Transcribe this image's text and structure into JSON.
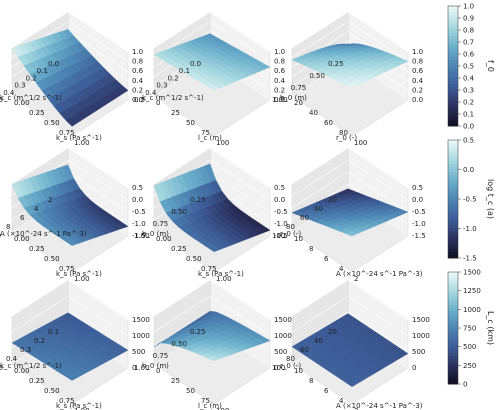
{
  "colors": {
    "cmap": [
      "#0b0d1a",
      "#2a2f5c",
      "#3c5b96",
      "#4b83b3",
      "#6aaecb",
      "#a5d8e0",
      "#e8f7f6"
    ],
    "pane": "#ececec",
    "grid": "#ffffff"
  },
  "chart_data": [
    {
      "type": "surface",
      "row": 0,
      "col": 0,
      "zkey": "f0",
      "zlim": [
        0,
        1
      ],
      "zticks": [
        "0.0",
        "0.2",
        "0.4",
        "0.6",
        "0.8",
        "1.0"
      ],
      "xaxis": {
        "label": "k_s (Pa s^-1)",
        "ticks": [
          "0.00",
          "0.25",
          "0.50",
          "0.75",
          "1.00"
        ]
      },
      "yaxis": {
        "label": "k_c (m^1/2 s^-1)",
        "ticks": [
          "0.0",
          "0.1",
          "0.2",
          "0.3",
          "0.4",
          "0.5"
        ]
      }
    },
    {
      "type": "surface",
      "row": 0,
      "col": 1,
      "zkey": "f0",
      "zlim": [
        0,
        1
      ],
      "zticks": [
        "0.0",
        "0.2",
        "0.4",
        "0.6",
        "0.8",
        "1.0"
      ],
      "xaxis": {
        "label": "l_c (m)",
        "ticks": [
          "0",
          "25",
          "50",
          "75",
          "100"
        ]
      },
      "yaxis": {
        "label": "k_c (m^1/2 s^-1)",
        "ticks": [
          "0.0",
          "0.1",
          "0.2",
          "0.3",
          "0.4",
          "0.5"
        ]
      }
    },
    {
      "type": "surface",
      "row": 0,
      "col": 2,
      "zkey": "f0",
      "zlim": [
        0,
        1
      ],
      "zticks": [
        "0.0",
        "0.2",
        "0.4",
        "0.6",
        "0.8",
        "1.0"
      ],
      "xaxis": {
        "label": "r_0 (-)",
        "ticks": [
          "20",
          "40",
          "60",
          "80",
          "100"
        ]
      },
      "yaxis": {
        "label": "h_0 (m)",
        "ticks": [
          "0.25",
          "0.50",
          "0.75",
          "1.00"
        ]
      }
    },
    {
      "type": "surface",
      "row": 1,
      "col": 0,
      "zkey": "logt",
      "zlim": [
        -1.5,
        0.5
      ],
      "zticks": [
        "-1.5",
        "-1.0",
        "-0.5",
        "0.0",
        "0.5"
      ],
      "xaxis": {
        "label": "k_s (Pa s^-1)",
        "ticks": [
          "0.00",
          "0.25",
          "0.50",
          "0.75",
          "1.00"
        ]
      },
      "yaxis": {
        "label": "A (×10^-24 s^-1 Pa^-3)",
        "ticks": [
          "2",
          "4",
          "6",
          "8",
          "10"
        ]
      }
    },
    {
      "type": "surface",
      "row": 1,
      "col": 1,
      "zkey": "logt",
      "zlim": [
        -1.5,
        0.5
      ],
      "zticks": [
        "-1.5",
        "-1.0",
        "-0.5",
        "0.0",
        "0.5"
      ],
      "xaxis": {
        "label": "k_s (Pa s^-1)",
        "ticks": [
          "0.00",
          "0.25",
          "0.50",
          "0.75",
          "1.00"
        ]
      },
      "yaxis": {
        "label": "h_0 (m)",
        "ticks": [
          "0.25",
          "0.50",
          "0.75",
          "1.00"
        ]
      }
    },
    {
      "type": "surface",
      "row": 1,
      "col": 2,
      "zkey": "logt",
      "zlim": [
        -1.5,
        0.5
      ],
      "zticks": [
        "-1.5",
        "-1.0",
        "-0.5",
        "0.0",
        "0.5"
      ],
      "xaxis": {
        "label": "A (×10^-24 s^-1 Pa^-3)",
        "ticks": [
          "10",
          "8",
          "6",
          "4",
          "2"
        ]
      },
      "yaxis": {
        "label": "r_0 (-)",
        "ticks": [
          "20",
          "40",
          "60",
          "80",
          "100"
        ]
      }
    },
    {
      "type": "surface",
      "row": 2,
      "col": 0,
      "zkey": "Lc",
      "zlim": [
        0,
        1500
      ],
      "zticks": [
        "0",
        "500",
        "1000",
        "1500"
      ],
      "xaxis": {
        "label": "k_s (Pa s^-1)",
        "ticks": [
          "0.00",
          "0.25",
          "0.50",
          "0.75",
          "1.00"
        ]
      },
      "yaxis": {
        "label": "k_c (m^1/2 s^-1)",
        "ticks": [
          "0.1",
          "0.2",
          "0.3",
          "0.4",
          "0.5"
        ]
      }
    },
    {
      "type": "surface",
      "row": 2,
      "col": 1,
      "zkey": "Lc",
      "zlim": [
        0,
        1500
      ],
      "zticks": [
        "0",
        "500",
        "1000",
        "1500"
      ],
      "xaxis": {
        "label": "l_c (m)",
        "ticks": [
          "0",
          "25",
          "50",
          "75",
          "100"
        ]
      },
      "yaxis": {
        "label": "h_0 (m)",
        "ticks": [
          "0.25",
          "0.50",
          "0.75",
          "1.00"
        ]
      }
    },
    {
      "type": "surface",
      "row": 2,
      "col": 2,
      "zkey": "Lc",
      "zlim": [
        0,
        1500
      ],
      "zticks": [
        "0",
        "500",
        "1000",
        "1500"
      ],
      "xaxis": {
        "label": "A (×10^-24 s^-1 Pa^-3)",
        "ticks": [
          "10",
          "8",
          "6",
          "4",
          "2"
        ]
      },
      "yaxis": {
        "label": "r_0 (-)",
        "ticks": [
          "20",
          "40",
          "60",
          "80",
          "100"
        ]
      }
    }
  ],
  "colorbars": [
    {
      "row": 0,
      "label": "f_0",
      "lim": [
        0,
        1
      ],
      "ticks": [
        "0.0",
        "0.1",
        "0.2",
        "0.3",
        "0.4",
        "0.5",
        "0.6",
        "0.7",
        "0.8",
        "0.9",
        "1.0"
      ]
    },
    {
      "row": 1,
      "label": "log t_c (a)",
      "lim": [
        -1.5,
        0.5
      ],
      "ticks": [
        "-1.5",
        "-1.0",
        "-0.5",
        "0.0",
        "0.5"
      ]
    },
    {
      "row": 2,
      "label": "L_c (km)",
      "lim": [
        0,
        1500
      ],
      "ticks": [
        "0",
        "250",
        "500",
        "750",
        "1000",
        "1250",
        "1500"
      ]
    }
  ]
}
